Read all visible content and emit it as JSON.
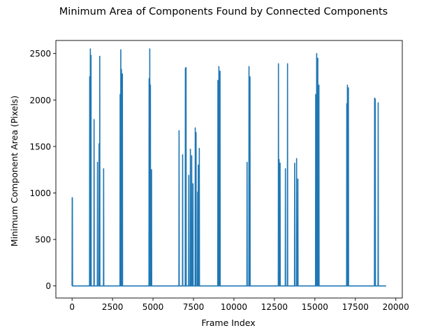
{
  "chart_data": {
    "type": "line",
    "title": "Minimum Area of Components Found by Connected Components",
    "xlabel": "Frame Index",
    "ylabel": "Minimum Component Area (Pixels)",
    "xlim": [
      -1000,
      20400
    ],
    "ylim": [
      -130,
      2640
    ],
    "xticks": [
      0,
      2500,
      5000,
      7500,
      10000,
      12500,
      15000,
      17500,
      20000
    ],
    "xtick_labels": [
      "0",
      "2500",
      "5000",
      "7500",
      "10000",
      "12500",
      "15000",
      "17500",
      "20000"
    ],
    "yticks": [
      0,
      500,
      1000,
      1500,
      2000,
      2500
    ],
    "ytick_labels": [
      "0",
      "500",
      "1000",
      "1500",
      "2000",
      "2500"
    ],
    "grid": false,
    "line_color": "#1f77b4",
    "series": [
      {
        "x": [
          0,
          10,
          20,
          30,
          40,
          1080,
          1090,
          1100,
          1120,
          1130,
          1140,
          1160,
          1170,
          1180,
          1350,
          1360,
          1370,
          1560,
          1570,
          1580,
          1660,
          1670,
          1680,
          1700,
          1710,
          1720,
          1940,
          1950,
          1960,
          2960,
          2970,
          2980,
          3000,
          3010,
          3020,
          3040,
          3050,
          3060,
          3100,
          3110,
          3120,
          4750,
          4760,
          4770,
          4790,
          4800,
          4810,
          4830,
          4840,
          4850,
          4900,
          4910,
          4920,
          6600,
          6610,
          6620,
          6820,
          6830,
          6840,
          6990,
          7000,
          7010,
          7030,
          7040,
          7050,
          7200,
          7210,
          7220,
          7300,
          7310,
          7320,
          7380,
          7390,
          7400,
          7460,
          7470,
          7480,
          7600,
          7610,
          7620,
          7650,
          7660,
          7670,
          7750,
          7760,
          7770,
          7790,
          7800,
          7810,
          7850,
          7860,
          7870,
          9000,
          9010,
          9020,
          9060,
          9070,
          9080,
          9130,
          9140,
          9150,
          10800,
          10810,
          10820,
          10920,
          10930,
          10940,
          10980,
          10990,
          11000,
          12740,
          12750,
          12760,
          12780,
          12790,
          12800,
          12840,
          12850,
          12860,
          13170,
          13180,
          13190,
          13300,
          13310,
          13320,
          13740,
          13750,
          13760,
          13860,
          13870,
          13880,
          13940,
          13950,
          13960,
          15040,
          15050,
          15060,
          15100,
          15110,
          15120,
          15170,
          15180,
          15190,
          15240,
          15250,
          15260,
          16960,
          16970,
          16980,
          17000,
          17010,
          17020,
          17060,
          17070,
          17080,
          18680,
          18690,
          18700,
          18720,
          18730,
          18740,
          18900,
          18910,
          18920,
          19400
        ],
        "y": [
          0,
          950,
          940,
          0,
          0,
          0,
          2250,
          0,
          0,
          2550,
          0,
          0,
          2480,
          0,
          0,
          1790,
          0,
          0,
          1330,
          0,
          0,
          1530,
          0,
          0,
          2470,
          0,
          0,
          1260,
          0,
          0,
          2060,
          0,
          0,
          2540,
          0,
          0,
          2330,
          0,
          0,
          2280,
          0,
          0,
          2230,
          0,
          0,
          2550,
          0,
          0,
          2160,
          0,
          0,
          1250,
          0,
          0,
          1670,
          0,
          0,
          1410,
          0,
          0,
          2340,
          0,
          0,
          2350,
          0,
          0,
          1190,
          0,
          0,
          1470,
          0,
          0,
          1400,
          0,
          0,
          1100,
          0,
          0,
          1700,
          0,
          0,
          1650,
          0,
          0,
          1010,
          0,
          0,
          1300,
          0,
          0,
          1480,
          0,
          0,
          2210,
          0,
          0,
          2360,
          0,
          0,
          2310,
          0,
          0,
          1330,
          0,
          0,
          2360,
          0,
          0,
          2250,
          0,
          0,
          2390,
          0,
          0,
          1360,
          0,
          0,
          1320,
          0,
          0,
          1260,
          0,
          0,
          2390,
          0,
          0,
          1320,
          0,
          0,
          1370,
          0,
          0,
          1150,
          0,
          0,
          2060,
          0,
          0,
          2500,
          0,
          0,
          2450,
          0,
          0,
          2160,
          0,
          0,
          1960,
          0,
          0,
          2160,
          0,
          0,
          2130,
          0,
          0,
          2020,
          0,
          0,
          2010,
          0,
          0,
          1970,
          0,
          0
        ]
      }
    ]
  }
}
